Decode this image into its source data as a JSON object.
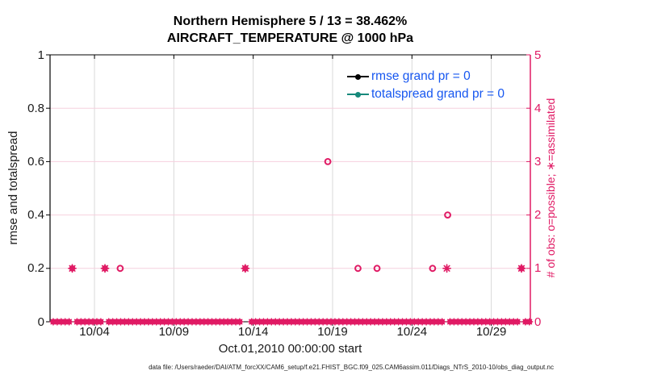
{
  "title": {
    "line1": "Northern Hemisphere 5 / 13 = 38.462%",
    "line2": "AIRCRAFT_TEMPERATURE @ 1000 hPa"
  },
  "legend": {
    "text_color": "#1757f0",
    "items": [
      {
        "label": "rmse grand pr = 0",
        "color": "#000000",
        "marker": "line-dot"
      },
      {
        "label": "totalspread grand pr = 0",
        "color": "#17897b",
        "marker": "line-dot"
      }
    ]
  },
  "footer": "data file: /Users/raeder/DAI/ATM_forcXX/CAM6_setup/f.e21.FHIST_BGC.f09_025.CAM6assim.011/Diags_NTrS_2010-10/obs_diag_output.nc",
  "colors": {
    "obs_pink": "#e01a64",
    "grid_gray": "#d8d8d8",
    "grid_pink": "#f6d0de",
    "axis_black": "#000000",
    "tick_text": "#1a1a1a",
    "legend_blue": "#1757f0",
    "teal": "#17897b"
  },
  "chart_data": {
    "type": "scatter",
    "title": "Northern Hemisphere 5 / 13 = 38.462%",
    "subtitle": "AIRCRAFT_TEMPERATURE @ 1000 hPa",
    "legend_position": "top-right-inside",
    "x_axis": {
      "label": "Oct.01,2010 00:00:00 start",
      "tick_labels": [
        "10/04",
        "10/09",
        "10/14",
        "10/19",
        "10/24",
        "10/29"
      ],
      "tick_days": [
        4,
        9,
        14,
        19,
        24,
        29
      ],
      "range_days": [
        1.2,
        31.46
      ],
      "grid": true
    },
    "y_axis_left": {
      "label": "rmse and totalspread",
      "tick_labels": [
        "0",
        "0.2",
        "0.4",
        "0.6",
        "0.8",
        "1"
      ],
      "tick_values": [
        0,
        0.2,
        0.4,
        0.6,
        0.8,
        1
      ],
      "range": [
        0,
        1
      ]
    },
    "y_axis_right": {
      "label": "# of obs: o=possible; ∗=assimilated",
      "tick_labels": [
        "0",
        "1",
        "2",
        "3",
        "4",
        "5"
      ],
      "tick_values": [
        0,
        1,
        2,
        3,
        4,
        5
      ],
      "range": [
        0,
        5
      ],
      "grid_values": [
        1,
        2,
        3,
        4
      ]
    },
    "series": [
      {
        "name": "rmse grand pr = 0",
        "axis": "left",
        "marker": "line-dot",
        "color": "#000000",
        "points": []
      },
      {
        "name": "totalspread grand pr = 0",
        "axis": "left",
        "marker": "line-dot",
        "color": "#17897b",
        "points": []
      },
      {
        "name": "possible obs (o)",
        "axis": "right",
        "marker": "circle",
        "color": "#e01a64",
        "points_day_count": [
          [
            5.62,
            1
          ],
          [
            18.7,
            3
          ],
          [
            20.6,
            1
          ],
          [
            21.8,
            1
          ],
          [
            25.3,
            1
          ],
          [
            26.25,
            2
          ]
        ]
      },
      {
        "name": "assimilated obs (*)",
        "axis": "right",
        "marker": "star",
        "color": "#e01a64",
        "points_day_count": [
          [
            26.2,
            1
          ]
        ]
      },
      {
        "name": "possible and assimilated overlap",
        "axis": "right",
        "marker": "star-circle",
        "color": "#e01a64",
        "points_day_count": [
          [
            2.6,
            1
          ],
          [
            4.66,
            1
          ],
          [
            13.5,
            1
          ],
          [
            30.9,
            1
          ]
        ]
      },
      {
        "name": "zero-count baseline",
        "axis": "right",
        "marker": "star-circle",
        "color": "#e01a64",
        "baseline": {
          "start_day": 1.4,
          "end_day": 31.4,
          "step_day": 0.25,
          "count": 0,
          "gap_days": [
            2.6,
            4.66,
            13.5,
            26.2,
            30.9
          ],
          "gap_halfwidth_day": 0.17
        }
      }
    ]
  }
}
